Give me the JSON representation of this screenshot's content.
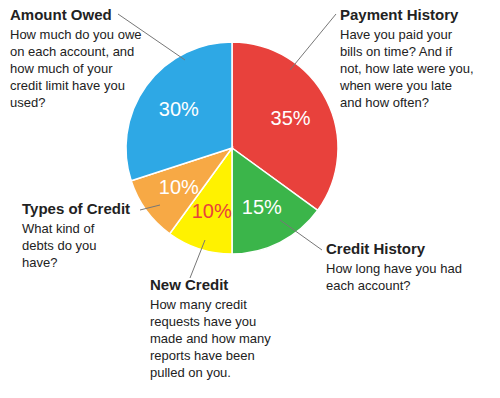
{
  "chart_data": {
    "type": "pie",
    "categories": [
      "Payment History",
      "Credit History",
      "New Credit",
      "Types of Credit",
      "Amount Owed"
    ],
    "values": [
      35,
      15,
      10,
      10,
      30
    ],
    "value_labels": [
      "35%",
      "15%",
      "10%",
      "10%",
      "30%"
    ],
    "colors": [
      "#e8413c",
      "#3bb54a",
      "#fff200",
      "#f7a945",
      "#2ea8e5"
    ],
    "data_labels": true,
    "annotations": [
      [
        "Have you paid your",
        "bills on time? And if",
        "not, how late were you,",
        "when were you late",
        "and how often?"
      ],
      [
        "How long have you had",
        "each account?"
      ],
      [
        "How many credit",
        "requests have you",
        "made and how many",
        "reports have been",
        "pulled on you."
      ],
      [
        "What kind of",
        "debts do you",
        "have?"
      ],
      [
        "How much do you owe",
        "on each account, and",
        "how much of your",
        "credit limit have you",
        "used?"
      ]
    ]
  }
}
